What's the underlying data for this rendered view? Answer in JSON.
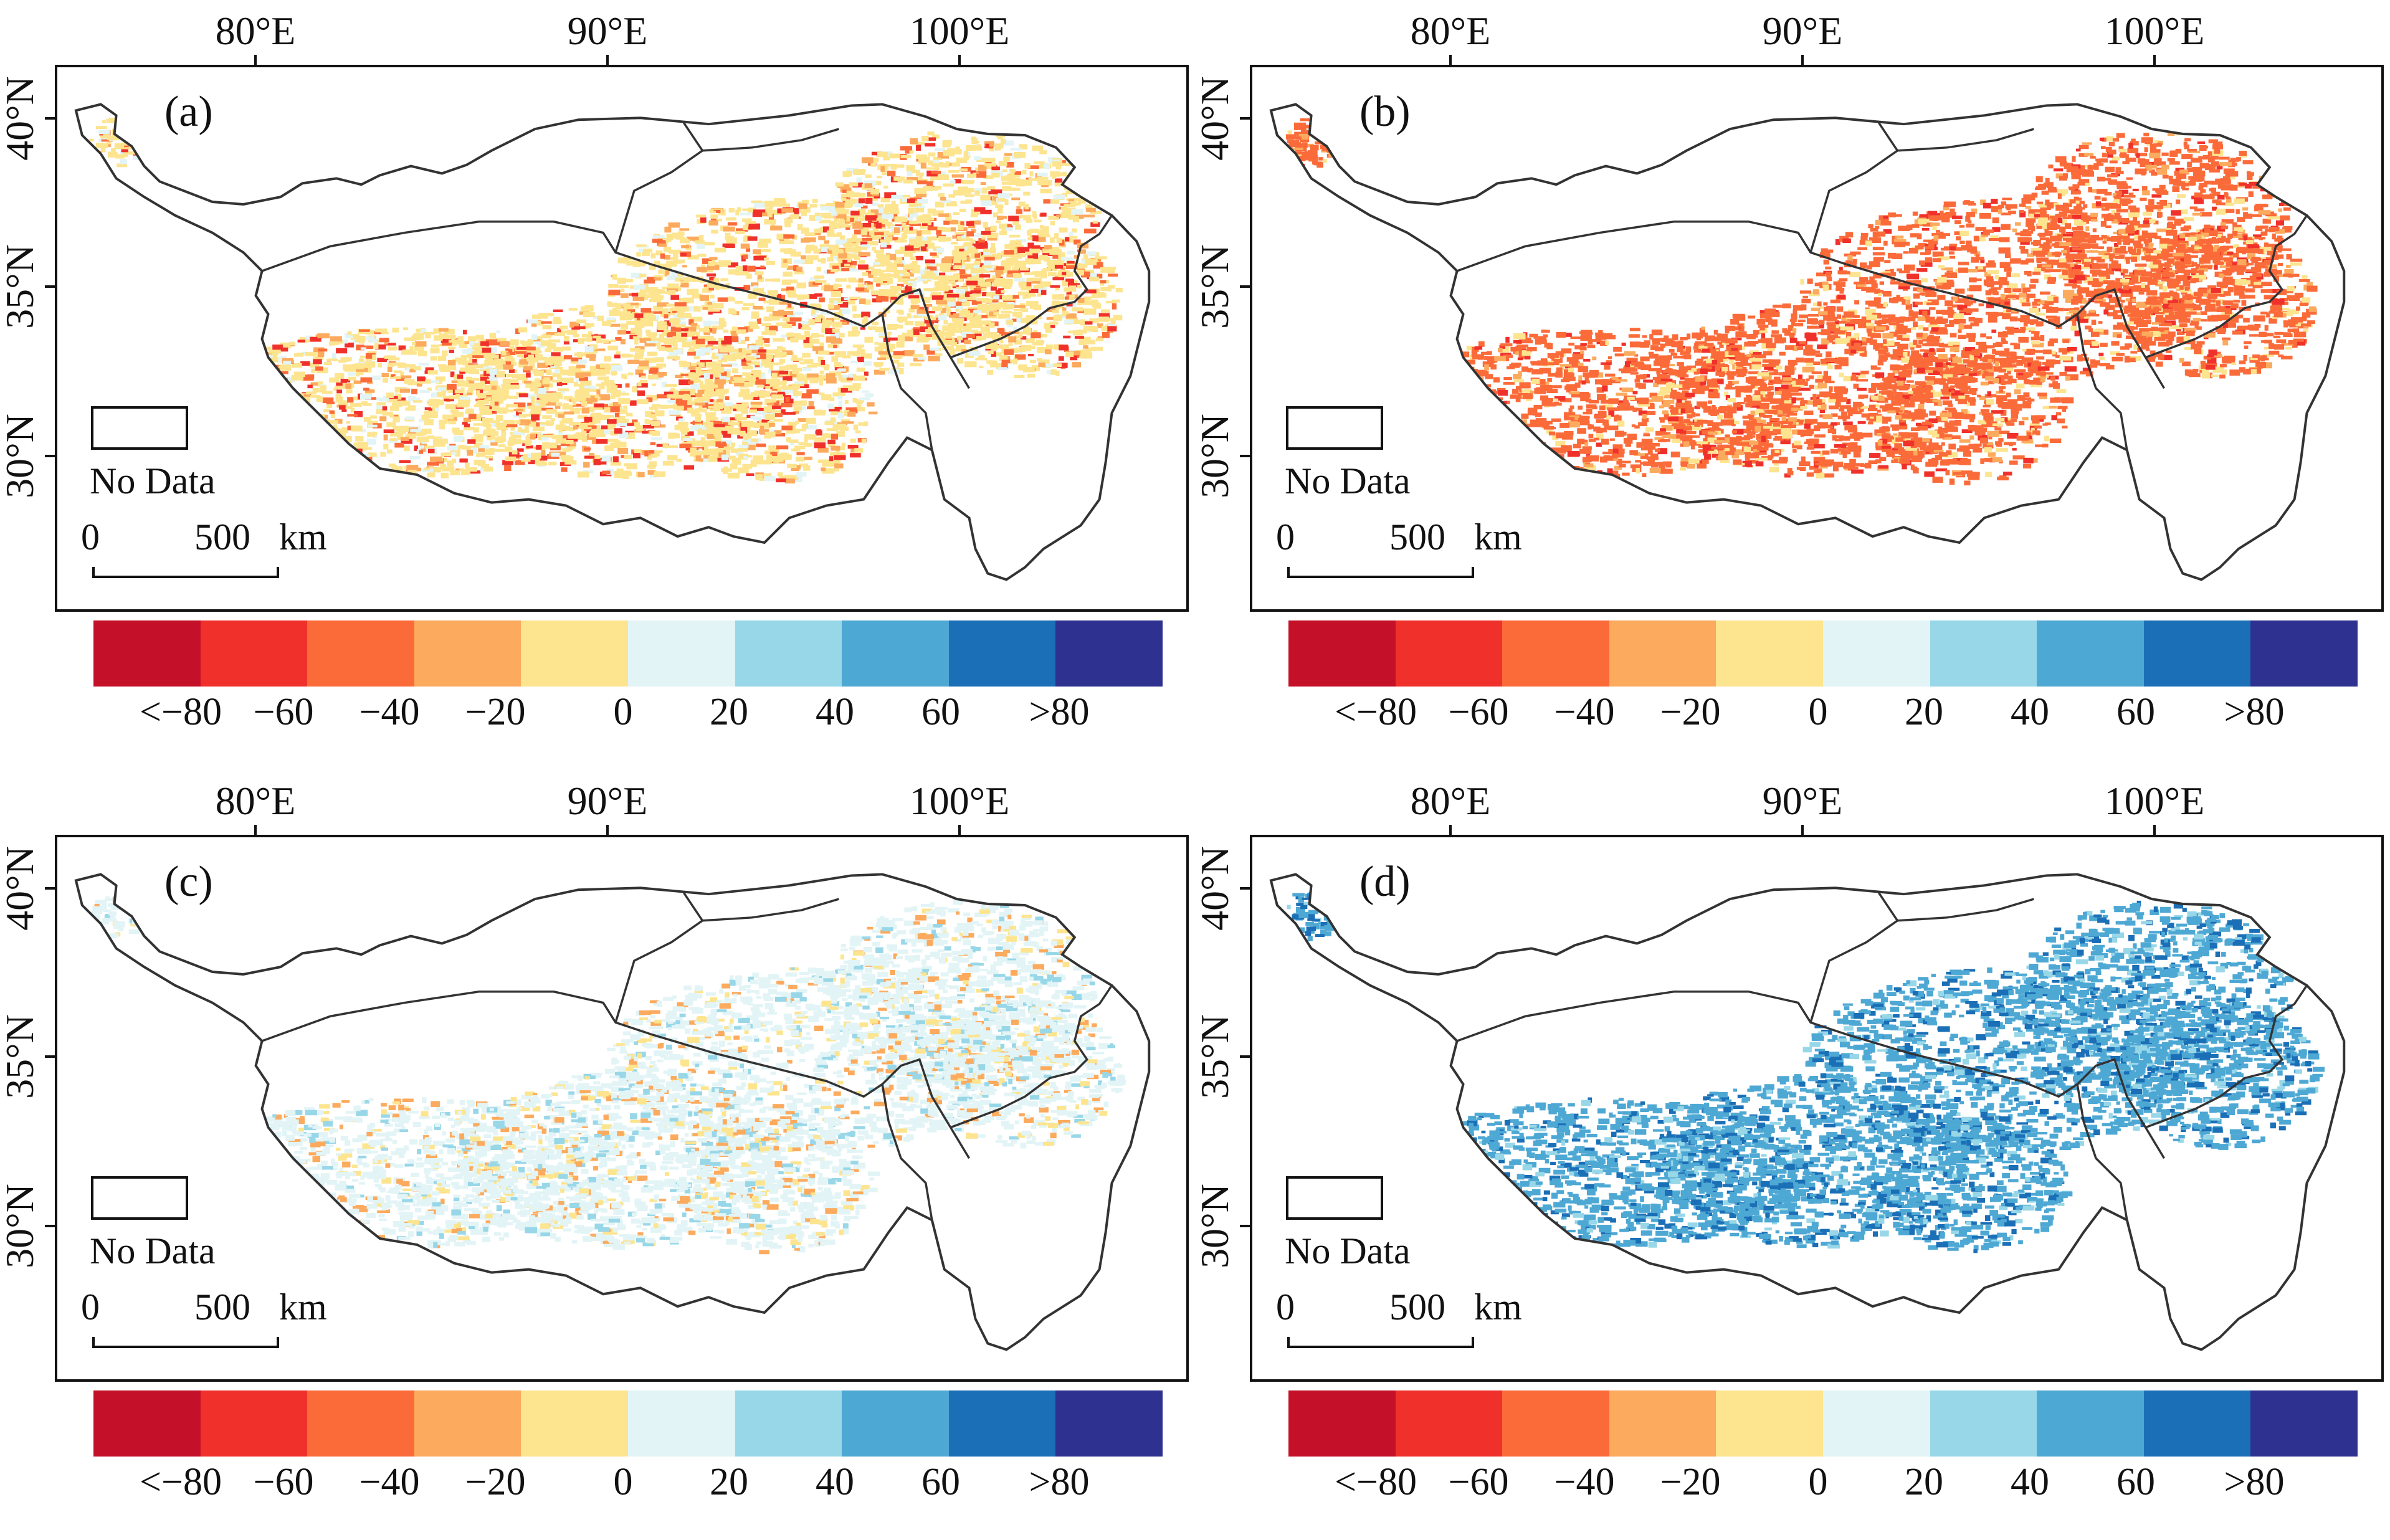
{
  "axes": {
    "lon_ticks": [
      "80°E",
      "90°E",
      "100°E"
    ],
    "lat_ticks": [
      "40°N",
      "35°N",
      "30°N"
    ]
  },
  "legend": {
    "no_data": "No Data",
    "scale_zero": "0",
    "scale_500": "500",
    "scale_unit": "km"
  },
  "colorbar": {
    "colors": [
      "#c5102a",
      "#f0312b",
      "#fb6b3a",
      "#fcaa5d",
      "#fde48f",
      "#e2f4f6",
      "#98d7e8",
      "#4ea8d4",
      "#1b6fb6",
      "#2e318f"
    ],
    "labels": [
      "<−80",
      "−60",
      "−40",
      "−20",
      "0",
      "20",
      "40",
      "60",
      ">80"
    ]
  },
  "panels": [
    {
      "id": "a",
      "label": "(a)",
      "palette": [
        "#fde48f",
        "#fcaa5d",
        "#fb6b3a",
        "#e2f4f6",
        "#f0312b"
      ]
    },
    {
      "id": "b",
      "label": "(b)",
      "palette": [
        "#fb6b3a",
        "#fcaa5d",
        "#fb6b3a",
        "#fde48f",
        "#f0312b"
      ]
    },
    {
      "id": "c",
      "label": "(c)",
      "palette": [
        "#e2f4f6",
        "#e2f4f6",
        "#fde48f",
        "#98d7e8",
        "#fcaa5d"
      ]
    },
    {
      "id": "d",
      "label": "(d)",
      "palette": [
        "#4ea8d4",
        "#1b6fb6",
        "#4ea8d4",
        "#98d7e8",
        "#1b6fb6"
      ]
    }
  ]
}
